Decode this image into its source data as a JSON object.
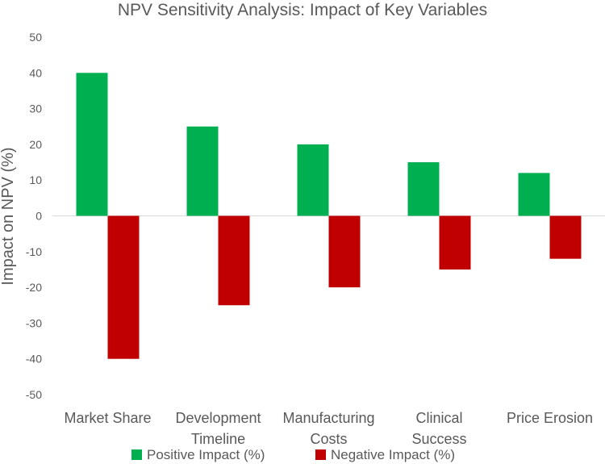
{
  "chart_data": {
    "type": "bar",
    "title": "NPV Sensitivity Analysis: Impact of Key Variables",
    "ylabel": "Impact on NPV (%)",
    "xlabel": "",
    "ylim": [
      -50,
      50
    ],
    "yticks": [
      50,
      40,
      30,
      20,
      10,
      0,
      -10,
      -20,
      -30,
      -40,
      -50
    ],
    "categories": [
      [
        "Market Share"
      ],
      [
        "Development",
        "Timeline"
      ],
      [
        "Manufacturing",
        "Costs"
      ],
      [
        "Clinical",
        "Success"
      ],
      [
        "Price Erosion"
      ]
    ],
    "series": [
      {
        "name": "Positive Impact (%)",
        "color": "#00b050",
        "values": [
          40,
          25,
          20,
          15,
          12
        ]
      },
      {
        "name": "Negative Impact (%)",
        "color": "#c00000",
        "values": [
          -40,
          -25,
          -20,
          -15,
          -12
        ]
      }
    ],
    "legend": "bottom",
    "grid": false
  }
}
